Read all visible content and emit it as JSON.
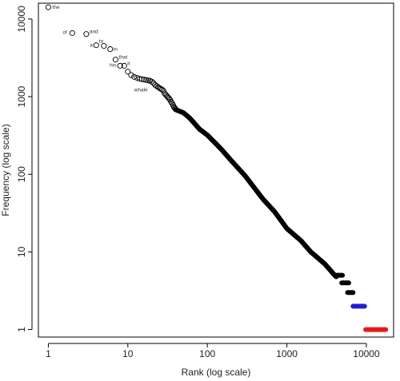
{
  "chart_data": {
    "type": "scatter",
    "title": "",
    "xlabel": "Rank (log scale)",
    "ylabel": "Frequency (log scale)",
    "x_scale": "log",
    "y_scale": "log",
    "xlim": [
      0.75,
      22000
    ],
    "ylim": [
      0.8,
      16000
    ],
    "grid": false,
    "legend": "none",
    "x_ticks": [
      {
        "value": 1,
        "label": "1"
      },
      {
        "value": 10,
        "label": "10"
      },
      {
        "value": 100,
        "label": "100"
      },
      {
        "value": 1000,
        "label": "1000"
      },
      {
        "value": 10000,
        "label": "10000"
      }
    ],
    "y_ticks": [
      {
        "value": 1,
        "label": "1"
      },
      {
        "value": 10,
        "label": "10"
      },
      {
        "value": 100,
        "label": "100"
      },
      {
        "value": 1000,
        "label": "1000"
      },
      {
        "value": 10000,
        "label": "10000"
      }
    ],
    "colors": {
      "open_points": "#000000",
      "filled_points": "#000000",
      "frequency_two": "#1f1fd0",
      "frequency_one": "#e41a1c"
    },
    "labeled_points": [
      {
        "rank": 1,
        "frequency": 14200,
        "word": "the"
      },
      {
        "rank": 2,
        "frequency": 6600,
        "word": "of"
      },
      {
        "rank": 3,
        "frequency": 6400,
        "word": "and"
      },
      {
        "rank": 4,
        "frequency": 4600,
        "word": "a"
      },
      {
        "rank": 5,
        "frequency": 4500,
        "word": "to"
      },
      {
        "rank": 6,
        "frequency": 4100,
        "word": "in"
      },
      {
        "rank": 7,
        "frequency": 3000,
        "word": "that"
      },
      {
        "rank": 8,
        "frequency": 2500,
        "word": "his"
      },
      {
        "rank": 9,
        "frequency": 2500,
        "word": "it"
      },
      {
        "rank": 27,
        "frequency": 1230,
        "word": "whale"
      }
    ],
    "series": [
      {
        "style": "open-circle",
        "rank_range": [
          1,
          40
        ],
        "points": [
          {
            "x": 1,
            "y": 14200
          },
          {
            "x": 2,
            "y": 6600
          },
          {
            "x": 3,
            "y": 6400
          },
          {
            "x": 4,
            "y": 4600
          },
          {
            "x": 5,
            "y": 4500
          },
          {
            "x": 6,
            "y": 4100
          },
          {
            "x": 7,
            "y": 3000
          },
          {
            "x": 8,
            "y": 2500
          },
          {
            "x": 9,
            "y": 2500
          },
          {
            "x": 10,
            "y": 2100
          },
          {
            "x": 11,
            "y": 1900
          },
          {
            "x": 12,
            "y": 1800
          },
          {
            "x": 13,
            "y": 1750
          },
          {
            "x": 14,
            "y": 1700
          },
          {
            "x": 15,
            "y": 1680
          },
          {
            "x": 16,
            "y": 1660
          },
          {
            "x": 17,
            "y": 1640
          },
          {
            "x": 18,
            "y": 1620
          },
          {
            "x": 19,
            "y": 1600
          },
          {
            "x": 20,
            "y": 1560
          },
          {
            "x": 21,
            "y": 1500
          },
          {
            "x": 22,
            "y": 1420
          },
          {
            "x": 23,
            "y": 1370
          },
          {
            "x": 24,
            "y": 1330
          },
          {
            "x": 25,
            "y": 1290
          },
          {
            "x": 26,
            "y": 1260
          },
          {
            "x": 27,
            "y": 1230
          },
          {
            "x": 28,
            "y": 1190
          },
          {
            "x": 29,
            "y": 1100
          },
          {
            "x": 30,
            "y": 1060
          },
          {
            "x": 31,
            "y": 1020
          },
          {
            "x": 32,
            "y": 980
          },
          {
            "x": 33,
            "y": 950
          },
          {
            "x": 34,
            "y": 910
          },
          {
            "x": 35,
            "y": 860
          },
          {
            "x": 36,
            "y": 820
          },
          {
            "x": 37,
            "y": 780
          },
          {
            "x": 38,
            "y": 740
          },
          {
            "x": 39,
            "y": 710
          },
          {
            "x": 40,
            "y": 690
          }
        ]
      },
      {
        "style": "filled",
        "color": "#000000",
        "curve": [
          {
            "x": 40,
            "y": 680
          },
          {
            "x": 50,
            "y": 620
          },
          {
            "x": 60,
            "y": 530
          },
          {
            "x": 80,
            "y": 380
          },
          {
            "x": 100,
            "y": 320
          },
          {
            "x": 150,
            "y": 210
          },
          {
            "x": 200,
            "y": 150
          },
          {
            "x": 300,
            "y": 95
          },
          {
            "x": 500,
            "y": 48
          },
          {
            "x": 700,
            "y": 33
          },
          {
            "x": 1000,
            "y": 20
          },
          {
            "x": 1500,
            "y": 14
          },
          {
            "x": 2000,
            "y": 10
          },
          {
            "x": 3000,
            "y": 7
          },
          {
            "x": 4000,
            "y": 5
          },
          {
            "x": 5000,
            "y": 4
          },
          {
            "x": 6500,
            "y": 3
          }
        ],
        "plateaus": [
          {
            "y": 5,
            "x_from": 4200,
            "x_to": 5000
          },
          {
            "y": 4,
            "x_from": 4900,
            "x_to": 6000
          },
          {
            "y": 3,
            "x_from": 5800,
            "x_to": 6800
          }
        ]
      },
      {
        "style": "filled",
        "color": "#1f1fd0",
        "y": 2,
        "x_from": 6800,
        "x_to": 9500
      },
      {
        "style": "filled",
        "color": "#e41a1c",
        "y": 1,
        "x_from": 9800,
        "x_to": 17500
      }
    ]
  }
}
